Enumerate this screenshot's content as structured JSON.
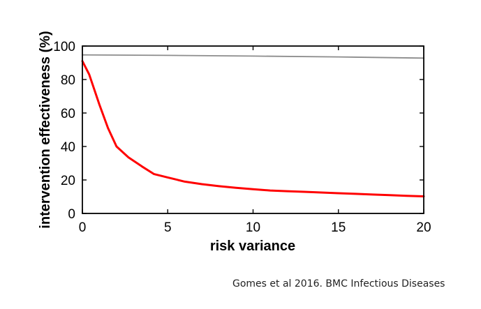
{
  "chart_data": {
    "type": "line",
    "xlabel": "risk variance",
    "ylabel": "intervention effectiveness (%)",
    "xlim": [
      0,
      20
    ],
    "ylim": [
      0,
      100
    ],
    "xticks": [
      0,
      5,
      10,
      15,
      20
    ],
    "yticks": [
      0,
      20,
      40,
      60,
      80,
      100
    ],
    "grid": false,
    "legend": "none",
    "series": [
      {
        "color": "#ff0000",
        "x": [
          0,
          0.4,
          1,
          1.5,
          2,
          2.7,
          3.5,
          4.2,
          5,
          6,
          7,
          8,
          9,
          10,
          11,
          12,
          13,
          14,
          15,
          16,
          17,
          18,
          19,
          20
        ],
        "y": [
          91,
          83,
          65,
          51,
          40,
          33.5,
          28,
          23.5,
          21.5,
          19,
          17.5,
          16.3,
          15.3,
          14.5,
          13.7,
          13.3,
          12.9,
          12.5,
          12.1,
          11.7,
          11.3,
          10.9,
          10.5,
          10.2
        ]
      },
      {
        "color": "#8c8c8c",
        "x": [
          0,
          5,
          10,
          15,
          20
        ],
        "y": [
          94.7,
          94.4,
          94,
          93.5,
          92.8
        ]
      }
    ]
  },
  "caption": "Gomes et al 2016. BMC Infectious Diseases"
}
